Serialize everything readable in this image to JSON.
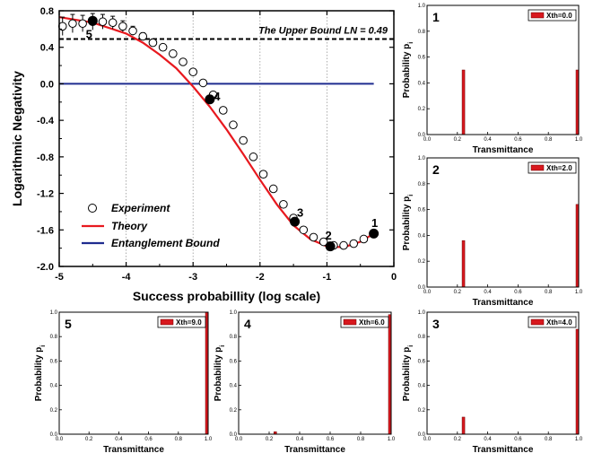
{
  "chart_data": [
    {
      "type": "scatter",
      "panel": "main",
      "xlabel": "Success probabillity (log scale)",
      "ylabel": "Logarithmic Negativity",
      "xlim": [
        -5,
        0
      ],
      "ylim": [
        -2.0,
        0.8
      ],
      "xticks": [
        "-5",
        "-4",
        "-3",
        "-2",
        "-1",
        "0"
      ],
      "yticks": [
        "0.8",
        "0.4",
        "0.0",
        "-0.4",
        "-0.8",
        "-1.2",
        "-1.6",
        "-2.0"
      ],
      "upper_bound": {
        "y": 0.49,
        "label": "The Upper Bound LN = 0.49"
      },
      "entanglement_bound_y": 0.0,
      "legend": [
        "Experiment",
        "Theory",
        "Entanglement Bound"
      ],
      "experiment": {
        "x": [
          -4.95,
          -4.8,
          -4.65,
          -4.5,
          -4.35,
          -4.2,
          -4.05,
          -3.9,
          -3.75,
          -3.6,
          -3.45,
          -3.3,
          -3.15,
          -3.0,
          -2.85,
          -2.7,
          -2.55,
          -2.4,
          -2.25,
          -2.1,
          -1.95,
          -1.8,
          -1.65,
          -1.5,
          -1.35,
          -1.2,
          -1.05,
          -0.9,
          -0.75,
          -0.6,
          -0.45,
          -0.3
        ],
        "y": [
          0.63,
          0.66,
          0.66,
          0.68,
          0.68,
          0.67,
          0.63,
          0.58,
          0.52,
          0.45,
          0.4,
          0.33,
          0.24,
          0.13,
          0.01,
          -0.12,
          -0.29,
          -0.45,
          -0.62,
          -0.8,
          -0.99,
          -1.15,
          -1.32,
          -1.47,
          -1.6,
          -1.68,
          -1.73,
          -1.77,
          -1.77,
          -1.75,
          -1.7,
          -1.64
        ],
        "err": [
          0.1,
          0.1,
          0.09,
          0.09,
          0.08,
          0.07,
          0.06,
          0.05,
          0.04,
          0.04,
          0.03,
          0.03,
          0.03,
          0.03,
          0.02,
          0.02,
          0.02,
          0.02,
          0.02,
          0.02,
          0.02,
          0.02,
          0.02,
          0.02,
          0.02,
          0.02,
          0.02,
          0.02,
          0.02,
          0.02,
          0.02,
          0.02
        ]
      },
      "theory": {
        "x": [
          -5,
          -4.5,
          -4.0,
          -3.75,
          -3.5,
          -3.25,
          -3.0,
          -2.75,
          -2.5,
          -2.25,
          -2.0,
          -1.75,
          -1.5,
          -1.25,
          -1.0,
          -0.75,
          -0.5,
          -0.3
        ],
        "y": [
          0.73,
          0.67,
          0.55,
          0.45,
          0.32,
          0.17,
          -0.03,
          -0.25,
          -0.5,
          -0.77,
          -1.05,
          -1.32,
          -1.55,
          -1.7,
          -1.78,
          -1.79,
          -1.73,
          -1.64
        ]
      },
      "highlighted_points": [
        {
          "label": "1",
          "x": -0.3,
          "y": -1.64
        },
        {
          "label": "2",
          "x": -0.95,
          "y": -1.78
        },
        {
          "label": "3",
          "x": -1.48,
          "y": -1.51
        },
        {
          "label": "4",
          "x": -2.75,
          "y": -0.17
        },
        {
          "label": "5",
          "x": -4.5,
          "y": 0.69
        }
      ]
    },
    {
      "type": "bar",
      "panel": "1",
      "legend": "Xth=0.0",
      "xlabel": "Transmittance",
      "ylabel": "Probability p",
      "ylabel_sub": "i",
      "x": [
        0.24,
        1.0
      ],
      "values": [
        0.5,
        0.5
      ],
      "xlim": [
        0.0,
        1.0
      ],
      "ylim": [
        0.0,
        1.0
      ]
    },
    {
      "type": "bar",
      "panel": "2",
      "legend": "Xth=2.0",
      "xlabel": "Transmittance",
      "ylabel": "Probability p",
      "ylabel_sub": "i",
      "x": [
        0.24,
        1.0
      ],
      "values": [
        0.36,
        0.64
      ],
      "xlim": [
        0.0,
        1.0
      ],
      "ylim": [
        0.0,
        1.0
      ]
    },
    {
      "type": "bar",
      "panel": "3",
      "legend": "Xth=4.0",
      "xlabel": "Transmittance",
      "ylabel": "Probability p",
      "ylabel_sub": "i",
      "x": [
        0.24,
        1.0
      ],
      "values": [
        0.14,
        0.86
      ],
      "xlim": [
        0.0,
        1.0
      ],
      "ylim": [
        0.0,
        1.0
      ]
    },
    {
      "type": "bar",
      "panel": "4",
      "legend": "Xth=6.0",
      "xlabel": "Transmittance",
      "ylabel": "Probability p",
      "ylabel_sub": "i",
      "x": [
        0.24,
        1.0
      ],
      "values": [
        0.02,
        0.98
      ],
      "xlim": [
        0.0,
        1.0
      ],
      "ylim": [
        0.0,
        1.0
      ]
    },
    {
      "type": "bar",
      "panel": "5",
      "legend": "Xth=9.0",
      "xlabel": "Transmittance",
      "ylabel": "Probability p",
      "ylabel_sub": "i",
      "x": [
        0.24,
        1.0
      ],
      "values": [
        0.0,
        1.0
      ],
      "xlim": [
        0.0,
        1.0
      ],
      "ylim": [
        0.0,
        1.0
      ]
    }
  ],
  "colors": {
    "theory": "#e8191f",
    "bound": "#1f2c8f",
    "bar": "#d8181e",
    "axis": "#000000"
  },
  "small_ticks_x": [
    "0.0",
    "0.2",
    "0.4",
    "0.6",
    "0.8",
    "1.0"
  ],
  "small_ticks_y": [
    "0.0",
    "0.2",
    "0.4",
    "0.6",
    "0.8",
    "1.0"
  ]
}
